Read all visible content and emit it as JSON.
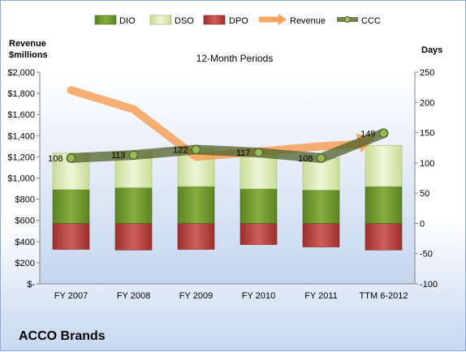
{
  "chart_data": {
    "type": "bar",
    "title": "12-Month Periods",
    "company": "ACCO Brands",
    "left_axis_label_line1": "Revenue",
    "left_axis_label_line2": "$millions",
    "right_axis_label": "Days",
    "categories": [
      "FY 2007",
      "FY 2008",
      "FY 2009",
      "FY 2010",
      "FY 2011",
      "TTM 6-2012"
    ],
    "left_ylim": [
      0,
      2000
    ],
    "left_ticks": [
      "$-",
      "$200",
      "$400",
      "$600",
      "$800",
      "$1,000",
      "$1,200",
      "$1,400",
      "$1,600",
      "$1,800",
      "$2,000"
    ],
    "right_ylim": [
      -100,
      250
    ],
    "right_ticks": [
      "-100",
      "-50",
      "0",
      "50",
      "100",
      "150",
      "200",
      "250"
    ],
    "series": [
      {
        "name": "DIO",
        "color": "#6f9a2c",
        "values": [
          56,
          59,
          61,
          57,
          55,
          61
        ]
      },
      {
        "name": "DSO",
        "color": "#dbe9b5",
        "values": [
          60,
          60,
          62,
          58,
          53,
          68
        ]
      },
      {
        "name": "DPO",
        "color": "#c0504d",
        "values": [
          -43,
          -44,
          -43,
          -35,
          -39,
          -44
        ]
      },
      {
        "name": "Revenue",
        "color": "#f79646",
        "values": [
          1830,
          1650,
          1200,
          1250,
          1300,
          1390
        ]
      },
      {
        "name": "CCC",
        "color": "#4f6228",
        "values": [
          108,
          113,
          122,
          117,
          108,
          149
        ]
      }
    ],
    "ccc_labels": [
      "108",
      "113",
      "122",
      "117",
      "108",
      "149"
    ],
    "grid": false,
    "legend_position": "top"
  }
}
